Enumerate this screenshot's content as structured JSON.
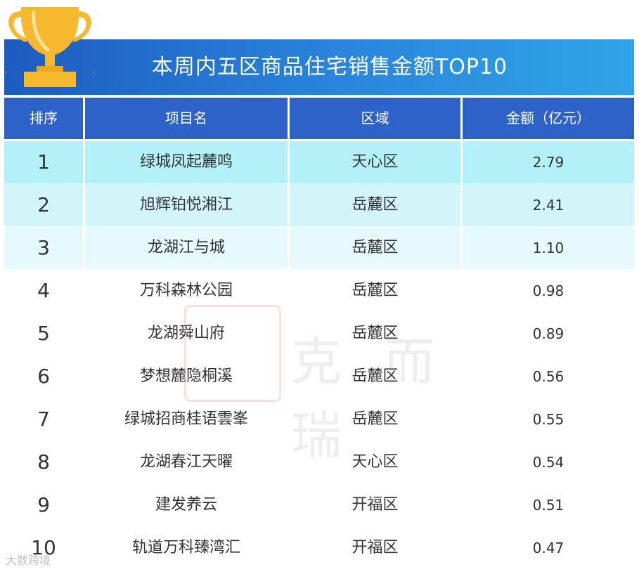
{
  "title": "本周内五区商品住宅销售金额TOP10",
  "headers": {
    "rank": "排序",
    "project": "项目名",
    "district": "区域",
    "amount": "金额（亿元）"
  },
  "rows": [
    {
      "rank": "1",
      "project": "绿城凤起麓鸣",
      "district": "天心区",
      "amount": "2.79"
    },
    {
      "rank": "2",
      "project": "旭辉铂悦湘江",
      "district": "岳麓区",
      "amount": "2.41"
    },
    {
      "rank": "3",
      "project": "龙湖江与城",
      "district": "岳麓区",
      "amount": "1.10"
    },
    {
      "rank": "4",
      "project": "万科森林公园",
      "district": "岳麓区",
      "amount": "0.98"
    },
    {
      "rank": "5",
      "project": "龙湖舜山府",
      "district": "岳麓区",
      "amount": "0.89"
    },
    {
      "rank": "6",
      "project": "梦想麓隐桐溪",
      "district": "岳麓区",
      "amount": "0.56"
    },
    {
      "rank": "7",
      "project": "绿城招商桂语雲峯",
      "district": "岳麓区",
      "amount": "0.55"
    },
    {
      "rank": "8",
      "project": "龙湖春江天曜",
      "district": "天心区",
      "amount": "0.54"
    },
    {
      "rank": "9",
      "project": "建发养云",
      "district": "开福区",
      "amount": "0.51"
    },
    {
      "rank": "10",
      "project": "轨道万科臻湾汇",
      "district": "开福区",
      "amount": "0.47"
    }
  ],
  "watermark": {
    "seal": "克",
    "text": "克而瑞"
  },
  "corner_watermark": "大数跨境",
  "colors": {
    "header_bg": "#2f62c8",
    "title_bg_start": "#1c5cc0",
    "title_bg_end": "#2fa4e8",
    "row1_bg": "#b3f0f8",
    "row2_bg": "#d2f5fa",
    "row3_bg": "#e6f9fc",
    "trophy": "#f5b82e"
  },
  "icons": {
    "trophy": "trophy-icon"
  }
}
